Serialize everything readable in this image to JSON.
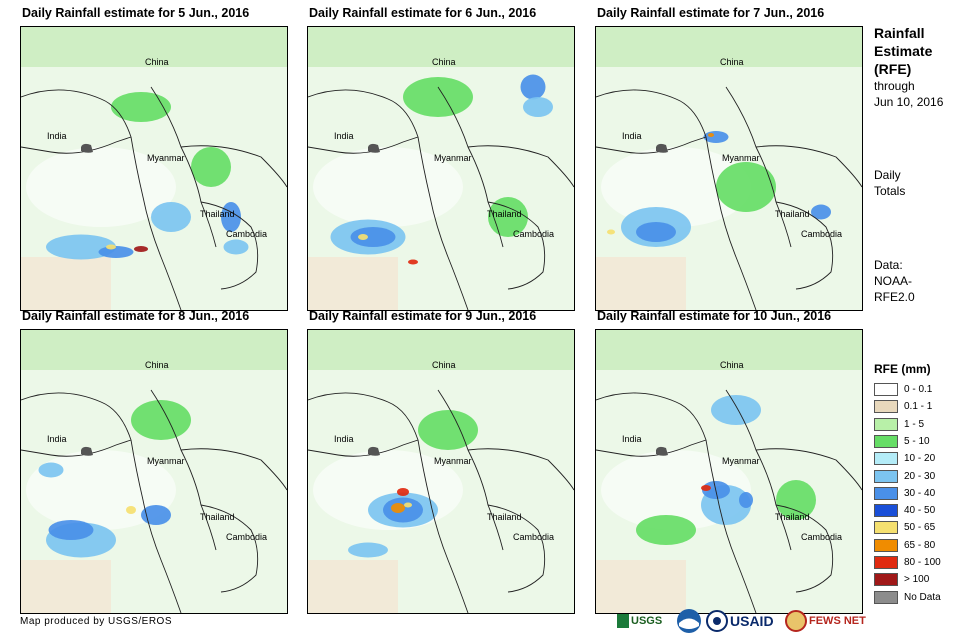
{
  "panels": [
    {
      "title": "Daily Rainfall estimate for 5 Jun., 2016",
      "labels": {
        "china": "China",
        "india": "India",
        "myanmar": "Myanmar",
        "thailand": "Thailand",
        "cambodia": "Cambodia"
      }
    },
    {
      "title": "Daily Rainfall estimate for 6 Jun., 2016",
      "labels": {
        "china": "China",
        "india": "India",
        "myanmar": "Myanmar",
        "thailand": "Thailand",
        "cambodia": "Cambodia"
      }
    },
    {
      "title": "Daily Rainfall estimate for 7 Jun., 2016",
      "labels": {
        "china": "China",
        "india": "India",
        "myanmar": "Myanmar",
        "thailand": "Thailand",
        "cambodia": "Cambodia"
      }
    },
    {
      "title": "Daily Rainfall estimate for 8 Jun., 2016",
      "labels": {
        "china": "China",
        "india": "India",
        "myanmar": "Myanmar",
        "thailand": "Thailand",
        "cambodia": "Cambodia"
      }
    },
    {
      "title": "Daily Rainfall estimate for 9 Jun., 2016",
      "labels": {
        "china": "China",
        "india": "India",
        "myanmar": "Myanmar",
        "thailand": "Thailand",
        "cambodia": "Cambodia"
      }
    },
    {
      "title": "Daily Rainfall estimate for 10 Jun., 2016",
      "labels": {
        "china": "China",
        "india": "India",
        "myanmar": "Myanmar",
        "thailand": "Thailand",
        "cambodia": "Cambodia"
      }
    }
  ],
  "side": {
    "heading_line1": "Rainfall",
    "heading_line2": "Estimate",
    "heading_line3": "(RFE)",
    "through": "through",
    "date": "Jun 10, 2016",
    "daily": "Daily",
    "totals": "Totals",
    "data_label": "Data:",
    "source1": "NOAA-",
    "source2": "RFE2.0"
  },
  "legend": {
    "title": "RFE (mm)",
    "items": [
      {
        "label": "0 - 0.1",
        "color": "#ffffff"
      },
      {
        "label": "0.1 - 1",
        "color": "#e8d8bc"
      },
      {
        "label": "1 - 5",
        "color": "#b8f0a8"
      },
      {
        "label": "5 - 10",
        "color": "#66dd66"
      },
      {
        "label": "10 - 20",
        "color": "#b4ecf8"
      },
      {
        "label": "20 - 30",
        "color": "#7cc4f0"
      },
      {
        "label": "30 - 40",
        "color": "#4a90e8"
      },
      {
        "label": "40 - 50",
        "color": "#1a4fd8"
      },
      {
        "label": "50 - 65",
        "color": "#f5e070"
      },
      {
        "label": "65 - 80",
        "color": "#f08c00"
      },
      {
        "label": "80 - 100",
        "color": "#e02a10"
      },
      {
        "label": "> 100",
        "color": "#a01818"
      },
      {
        "label": "No Data",
        "color": "#8c8c8c"
      }
    ]
  },
  "footer": {
    "credit": "Map produced by USGS/EROS"
  },
  "logos": {
    "usgs": "USGS",
    "usaid": "USAID",
    "fewsnet": "FEWS NET"
  }
}
